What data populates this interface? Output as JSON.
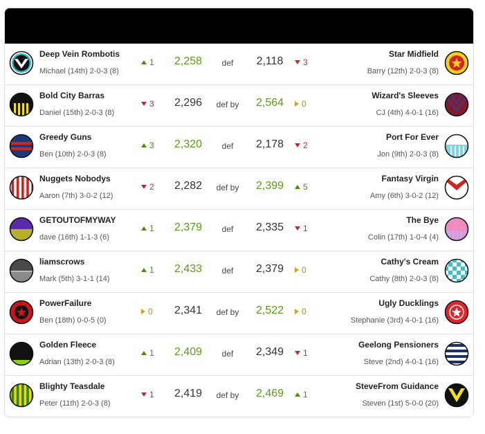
{
  "colors": {
    "header": "#000000",
    "win_score": "#5a9a1a",
    "trend_up": "#4f8a10",
    "trend_down": "#c62828",
    "trend_flat": "#c9a227"
  },
  "matches": [
    {
      "home": {
        "team": "Deep Vein Rombotis",
        "owner": "Michael (14th) 2-0-3 (8)",
        "badge_icon": "chevron-badge-icon",
        "trend_dir": "up",
        "trend": "1",
        "score": "2,258",
        "winner": true
      },
      "result": "def",
      "away": {
        "team": "Star Midfield",
        "owner": "Barry (12th) 2-0-3 (8)",
        "badge_icon": "star-badge-icon",
        "trend_dir": "down",
        "trend": "3",
        "score": "2,118",
        "winner": false
      }
    },
    {
      "home": {
        "team": "Bold City Barras",
        "owner": "Daniel (15th) 2-0-3 (8)",
        "badge_icon": "yellow-stripes-badge-icon",
        "trend_dir": "down",
        "trend": "3",
        "score": "2,296",
        "winner": false
      },
      "result": "def by",
      "away": {
        "team": "Wizard's Sleeves",
        "owner": "CJ (4th) 4-0-1 (16)",
        "badge_icon": "v-stripes-badge-icon",
        "trend_dir": "flat",
        "trend": "0",
        "score": "2,564",
        "winner": true
      }
    },
    {
      "home": {
        "team": "Greedy Guns",
        "owner": "Ben (10th) 2-0-3 (8)",
        "badge_icon": "hoops-badge-icon",
        "trend_dir": "up",
        "trend": "3",
        "score": "2,320",
        "winner": true
      },
      "result": "def",
      "away": {
        "team": "Port For Ever",
        "owner": "Jon (9th) 2-0-3 (8)",
        "badge_icon": "cyan-stripes-badge-icon",
        "trend_dir": "down",
        "trend": "2",
        "score": "2,178",
        "winner": false
      }
    },
    {
      "home": {
        "team": "Nuggets Nobodys",
        "owner": "Aaron (7th) 3-0-2 (12)",
        "badge_icon": "red-stripes-badge-icon",
        "trend_dir": "down",
        "trend": "2",
        "score": "2,282",
        "winner": false
      },
      "result": "def by",
      "away": {
        "team": "Fantasy Virgin",
        "owner": "Amy (6th) 3-0-2 (12)",
        "badge_icon": "red-v-badge-icon",
        "trend_dir": "up",
        "trend": "5",
        "score": "2,399",
        "winner": true
      }
    },
    {
      "home": {
        "team": "GETOUTOFMYWAY",
        "owner": "dave (16th) 1-1-3 (6)",
        "badge_icon": "purple-olive-badge-icon",
        "trend_dir": "up",
        "trend": "1",
        "score": "2,379",
        "winner": true
      },
      "result": "def",
      "away": {
        "team": "The Bye",
        "owner": "Colin (17th) 1-0-4 (4)",
        "badge_icon": "pink-stripes-badge-icon",
        "trend_dir": "down",
        "trend": "1",
        "score": "2,335",
        "winner": false
      }
    },
    {
      "home": {
        "team": "liamscrows",
        "owner": "Mark (5th) 3-1-1 (14)",
        "badge_icon": "grey-badge-icon",
        "trend_dir": "up",
        "trend": "1",
        "score": "2,433",
        "winner": true
      },
      "result": "def",
      "away": {
        "team": "Cathy's Cream",
        "owner": "Cathy (8th) 2-0-3 (8)",
        "badge_icon": "checker-badge-icon",
        "trend_dir": "flat",
        "trend": "0",
        "score": "2,379",
        "winner": false
      }
    },
    {
      "home": {
        "team": "PowerFailure",
        "owner": "Ben (18th) 0-0-5 (0)",
        "badge_icon": "red-star-badge-icon",
        "trend_dir": "flat",
        "trend": "0",
        "score": "2,341",
        "winner": false
      },
      "result": "def by",
      "away": {
        "team": "Ugly Ducklings",
        "owner": "Stephanie (3rd) 4-0-1 (16)",
        "badge_icon": "red-star-ring-badge-icon",
        "trend_dir": "flat",
        "trend": "0",
        "score": "2,522",
        "winner": true
      }
    },
    {
      "home": {
        "team": "Golden Fleece",
        "owner": "Adrian (13th) 2-0-3 (8)",
        "badge_icon": "black-green-badge-icon",
        "trend_dir": "up",
        "trend": "1",
        "score": "2,409",
        "winner": true
      },
      "result": "def",
      "away": {
        "team": "Geelong Pensioners",
        "owner": "Steve (2nd) 4-0-1 (16)",
        "badge_icon": "navy-hoops-badge-icon",
        "trend_dir": "down",
        "trend": "1",
        "score": "2,349",
        "winner": false
      }
    },
    {
      "home": {
        "team": "Blighty Teasdale",
        "owner": "Peter (11th) 2-0-3 (8)",
        "badge_icon": "green-gold-stripes-badge-icon",
        "trend_dir": "down",
        "trend": "1",
        "score": "2,419",
        "winner": false
      },
      "result": "def by",
      "away": {
        "team": "SteveFrom Guidance",
        "owner": "Steven (1st) 5-0-0 (20)",
        "badge_icon": "yellow-v-badge-icon",
        "trend_dir": "up",
        "trend": "1",
        "score": "2,469",
        "winner": true
      }
    }
  ]
}
